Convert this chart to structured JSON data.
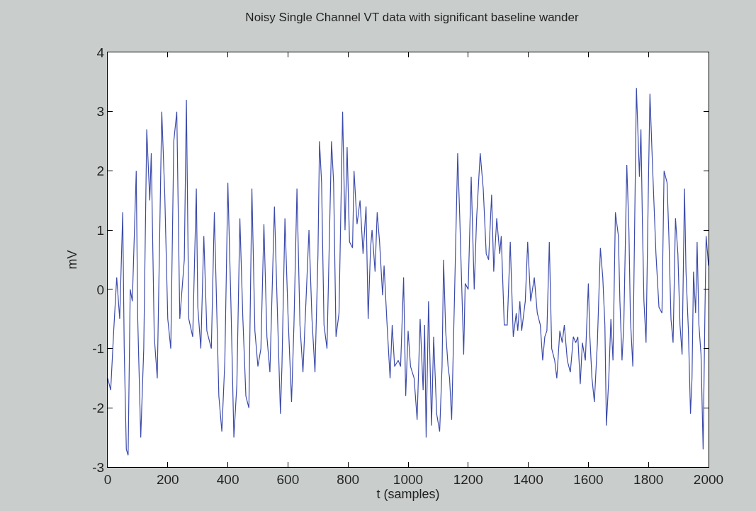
{
  "chart_data": {
    "type": "line",
    "title": "Noisy Single Channel VT data with significant baseline wander",
    "xlabel": "t (samples)",
    "ylabel": "mV",
    "xlim": [
      0,
      2000
    ],
    "xticks": [
      0,
      200,
      400,
      600,
      800,
      1000,
      1200,
      1400,
      1600,
      1800,
      2000
    ],
    "ylim": [
      -3,
      4
    ],
    "yticks": [
      -3,
      -2,
      -1,
      0,
      1,
      2,
      3,
      4
    ],
    "grid": false,
    "marker": "none",
    "line_style": "solid",
    "series": [
      {
        "color": "#3c4bab",
        "x": [
          0,
          10,
          20,
          30,
          40,
          50,
          55,
          62,
          68,
          75,
          82,
          95,
          100,
          110,
          120,
          130,
          140,
          145,
          155,
          165,
          180,
          190,
          200,
          210,
          220,
          230,
          240,
          255,
          262,
          270,
          283,
          295,
          300,
          310,
          320,
          330,
          345,
          355,
          370,
          380,
          390,
          400,
          410,
          420,
          430,
          440,
          450,
          460,
          470,
          480,
          490,
          500,
          510,
          520,
          530,
          540,
          555,
          565,
          575,
          580,
          590,
          600,
          612,
          620,
          630,
          640,
          650,
          660,
          670,
          680,
          690,
          700,
          705,
          712,
          720,
          730,
          745,
          752,
          760,
          770,
          782,
          790,
          797,
          805,
          815,
          820,
          830,
          840,
          850,
          860,
          867,
          875,
          880,
          890,
          897,
          905,
          915,
          920,
          930,
          940,
          947,
          955,
          967,
          975,
          985,
          992,
          1000,
          1008,
          1020,
          1030,
          1040,
          1050,
          1055,
          1060,
          1068,
          1078,
          1085,
          1095,
          1105,
          1113,
          1118,
          1125,
          1133,
          1138,
          1145,
          1155,
          1165,
          1172,
          1185,
          1190,
          1200,
          1210,
          1220,
          1228,
          1240,
          1250,
          1260,
          1268,
          1278,
          1285,
          1295,
          1305,
          1310,
          1320,
          1330,
          1340,
          1350,
          1360,
          1365,
          1372,
          1378,
          1390,
          1398,
          1408,
          1420,
          1430,
          1440,
          1448,
          1455,
          1462,
          1470,
          1478,
          1488,
          1495,
          1505,
          1513,
          1520,
          1530,
          1540,
          1550,
          1558,
          1565,
          1573,
          1580,
          1590,
          1600,
          1605,
          1612,
          1620,
          1630,
          1640,
          1648,
          1655,
          1660,
          1668,
          1675,
          1682,
          1690,
          1700,
          1705,
          1712,
          1718,
          1728,
          1735,
          1740,
          1748,
          1760,
          1770,
          1775,
          1780,
          1785,
          1792,
          1800,
          1805,
          1812,
          1818,
          1825,
          1835,
          1845,
          1852,
          1862,
          1868,
          1875,
          1882,
          1890,
          1898,
          1905,
          1912,
          1920,
          1925,
          1933,
          1940,
          1945,
          1950,
          1957,
          1962,
          1968,
          1975,
          1982,
          1988,
          1992,
          2000
        ],
        "values": [
          -1.5,
          -1.7,
          -0.7,
          0.2,
          -0.5,
          1.3,
          -1.0,
          -2.7,
          -2.8,
          0.0,
          -0.2,
          2.0,
          -0.5,
          -2.5,
          -1.0,
          2.7,
          1.5,
          2.3,
          -0.8,
          -1.5,
          3.0,
          1.6,
          -0.5,
          -1.0,
          2.5,
          3.0,
          -0.5,
          0.5,
          3.2,
          -0.5,
          -0.8,
          1.7,
          -0.3,
          -1.0,
          0.9,
          -0.7,
          -1.0,
          1.3,
          -1.8,
          -2.4,
          -1.2,
          1.8,
          -0.2,
          -2.5,
          -1.6,
          1.2,
          -0.5,
          -1.8,
          -2.0,
          1.7,
          -0.7,
          -1.3,
          -1.0,
          1.1,
          -0.8,
          -1.4,
          1.4,
          -0.4,
          -2.1,
          -1.3,
          1.2,
          -0.4,
          -1.9,
          -0.6,
          1.7,
          -0.6,
          -1.4,
          -0.2,
          1.0,
          -0.5,
          -1.4,
          0.6,
          2.5,
          1.8,
          -0.6,
          -1.0,
          2.5,
          1.8,
          -0.8,
          -0.4,
          3.0,
          1.0,
          2.4,
          0.8,
          0.7,
          2.0,
          1.1,
          1.5,
          0.6,
          1.4,
          -0.5,
          0.7,
          1.0,
          0.3,
          1.3,
          0.8,
          -0.1,
          0.4,
          -0.6,
          -1.5,
          -0.6,
          -1.3,
          -1.2,
          -1.3,
          0.2,
          -1.8,
          -0.7,
          -1.3,
          -1.5,
          -2.2,
          -0.5,
          -1.7,
          -0.6,
          -2.5,
          -0.2,
          -2.3,
          -0.8,
          -2.1,
          -2.4,
          -1.3,
          0.5,
          -0.7,
          -1.3,
          -1.5,
          -2.2,
          0.0,
          2.3,
          1.2,
          -1.1,
          0.1,
          0.0,
          1.9,
          0.0,
          1.2,
          2.3,
          1.7,
          0.6,
          0.5,
          1.6,
          0.3,
          1.2,
          0.6,
          0.9,
          -0.6,
          -0.6,
          0.8,
          -0.8,
          -0.4,
          -0.7,
          -0.2,
          -0.7,
          -0.2,
          0.8,
          -0.2,
          0.2,
          -0.4,
          -0.6,
          -1.2,
          -0.8,
          -0.7,
          0.8,
          -1.0,
          -1.2,
          -1.5,
          -0.7,
          -0.9,
          -0.6,
          -1.2,
          -1.4,
          -0.8,
          -0.9,
          -0.8,
          -1.6,
          -0.9,
          -1.2,
          0.1,
          -0.8,
          -1.5,
          -1.9,
          -0.9,
          0.7,
          0.2,
          -0.6,
          -2.3,
          -1.5,
          -0.5,
          -1.2,
          1.3,
          0.9,
          -0.2,
          -1.2,
          -0.6,
          2.1,
          1.0,
          -0.5,
          -1.3,
          3.4,
          1.9,
          2.7,
          1.1,
          -0.2,
          -0.9,
          1.8,
          3.3,
          2.3,
          1.5,
          0.6,
          -0.3,
          -0.4,
          2.0,
          1.8,
          0.9,
          -0.5,
          -0.9,
          1.2,
          0.6,
          -0.6,
          -1.1,
          1.7,
          0.3,
          -0.7,
          -2.1,
          -1.5,
          0.3,
          -0.4,
          0.8,
          -0.6,
          -1.1,
          -2.7,
          -0.4,
          0.9,
          0.4
        ]
      }
    ]
  }
}
